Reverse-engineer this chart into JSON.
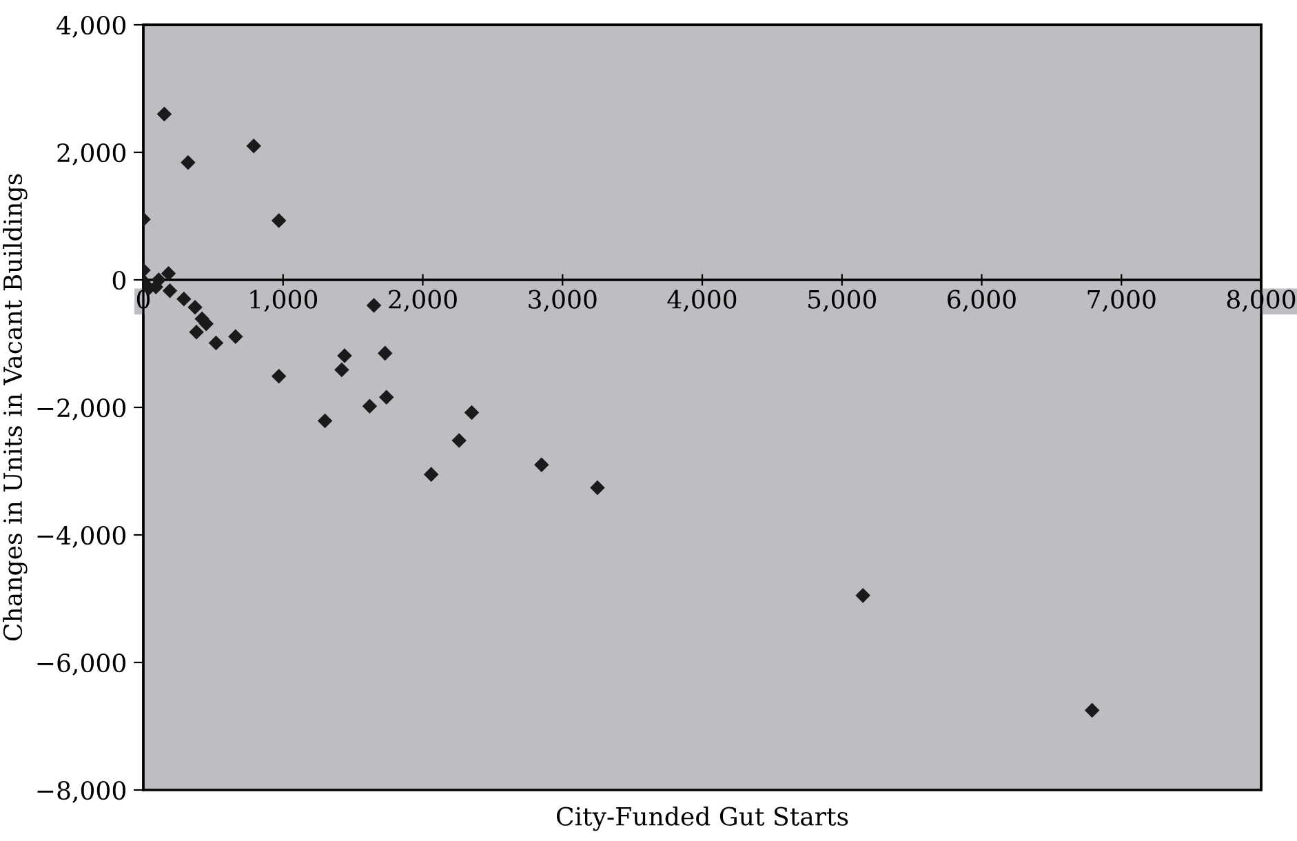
{
  "chart_data": {
    "type": "scatter",
    "xlabel": "City-Funded Gut Starts",
    "ylabel": "Changes in Units in Vacant Buildings",
    "series": [
      {
        "color": "#1a1a1a",
        "x": [
          0,
          150,
          320,
          790,
          970,
          0,
          0,
          40,
          110,
          90,
          180,
          190,
          290,
          370,
          420,
          450,
          380,
          520,
          660,
          1650,
          970,
          1440,
          1420,
          1730,
          1740,
          1620,
          1300,
          2350,
          2260,
          2060,
          2850,
          3250,
          5150,
          6790
        ],
        "values": [
          950,
          2600,
          1840,
          2100,
          930,
          150,
          -20,
          -130,
          0,
          -110,
          100,
          -170,
          -300,
          -430,
          -610,
          -690,
          -820,
          -990,
          -890,
          -400,
          -1510,
          -1190,
          -1410,
          -1150,
          -1840,
          -1980,
          -2210,
          -2080,
          -2520,
          -3050,
          -2900,
          -3260,
          -4950,
          -6750
        ]
      }
    ],
    "marker": "diamond",
    "grid": false,
    "xlim": [
      0,
      8000
    ],
    "ylim": [
      -8000,
      4000
    ],
    "xticks": [
      0,
      {
        "value": 1000,
        "label": "1,000"
      },
      {
        "value": 2000,
        "label": "2,000"
      },
      {
        "value": 3000,
        "label": "3,000"
      },
      {
        "value": 4000,
        "label": "4,000"
      },
      {
        "value": 5000,
        "label": "5,000"
      },
      {
        "value": 6000,
        "label": "6,000"
      },
      {
        "value": 7000,
        "label": "7,000"
      },
      {
        "value": 8000,
        "label": "8,000"
      }
    ],
    "yticks": [
      {
        "value": -8000,
        "label": "−8,000"
      },
      {
        "value": -6000,
        "label": "−6,000"
      },
      {
        "value": -4000,
        "label": "−4,000"
      },
      {
        "value": -2000,
        "label": "−2,000"
      },
      0,
      {
        "value": 2000,
        "label": "2,000"
      },
      {
        "value": 4000,
        "label": "4,000"
      }
    ]
  }
}
